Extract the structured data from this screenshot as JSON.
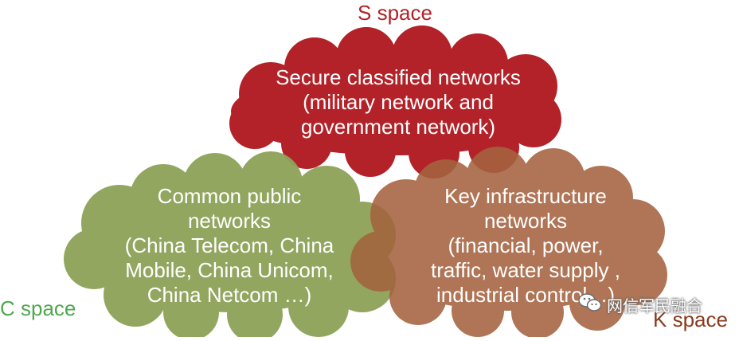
{
  "spaces": {
    "s": {
      "label": "S space",
      "lines": [
        "Secure classified networks",
        "(military network and",
        "government network)"
      ],
      "color": "#b22228"
    },
    "c": {
      "label": "C space",
      "lines": [
        "Common public",
        "networks",
        "(China Telecom, China",
        "Mobile,  China Unicom,",
        "China Netcom …)"
      ],
      "color": "#8ea35a"
    },
    "k": {
      "label": "K space",
      "lines": [
        "Key infrastructure",
        "networks",
        "(financial, power,",
        "traffic, water supply ,",
        "industrial control…)"
      ],
      "color": "#a4633f"
    }
  },
  "watermark": {
    "label": "网信军民融合",
    "icon": "wechat-icon"
  }
}
